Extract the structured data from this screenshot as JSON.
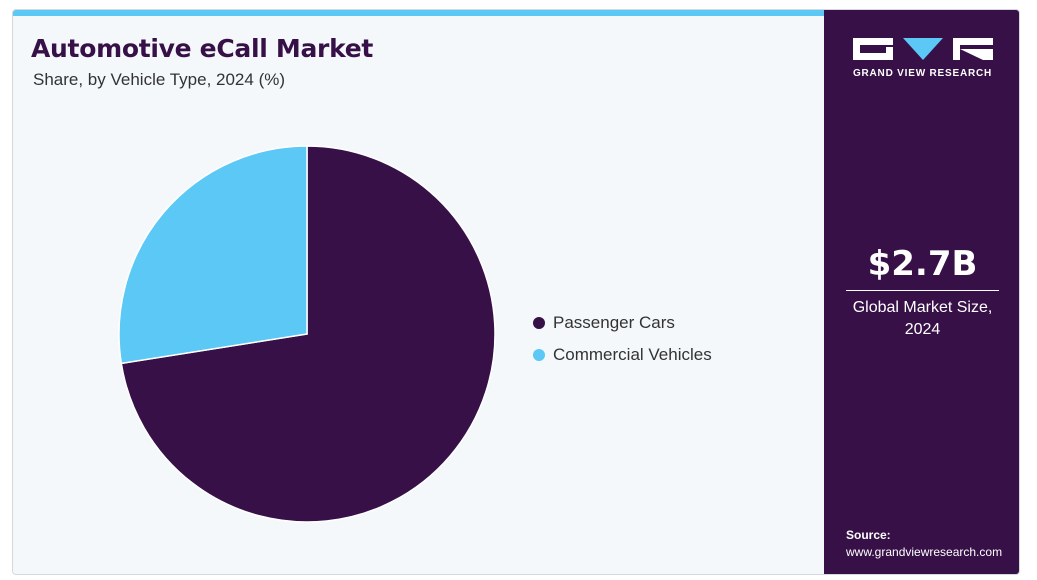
{
  "chart_data": {
    "type": "pie",
    "title": "Automotive eCall Market",
    "subtitle": "Share, by Vehicle Type, 2024 (%)",
    "categories": [
      "Passenger Cars",
      "Commercial Vehicles"
    ],
    "values": [
      72.5,
      27.5
    ],
    "colors": [
      "#361046",
      "#5bc8f5"
    ],
    "legend_position": "right"
  },
  "sidebar": {
    "brand": "GRAND VIEW RESEARCH",
    "market_value": "$2.7B",
    "market_caption": "Global Market Size, 2024",
    "source_label": "Source:",
    "source_url": "www.grandviewresearch.com"
  },
  "colors": {
    "accent_bar": "#5bc8f5",
    "panel_background": "#361046",
    "chart_background": "#f4f8fb"
  }
}
